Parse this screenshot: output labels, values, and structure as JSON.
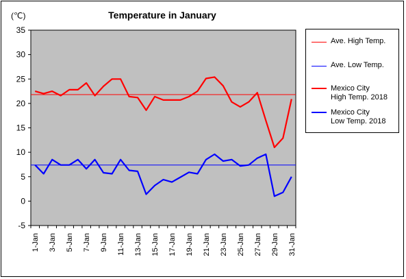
{
  "chart_data": {
    "type": "line",
    "title": "Temperature in January",
    "unit_label": "(℃)",
    "ylim": [
      -5,
      35
    ],
    "yticks": [
      -5,
      0,
      5,
      10,
      15,
      20,
      25,
      30,
      35
    ],
    "x": [
      "1-Jan",
      "2-Jan",
      "3-Jan",
      "4-Jan",
      "5-Jan",
      "6-Jan",
      "7-Jan",
      "8-Jan",
      "9-Jan",
      "10-Jan",
      "11-Jan",
      "12-Jan",
      "13-Jan",
      "14-Jan",
      "15-Jan",
      "16-Jan",
      "17-Jan",
      "18-Jan",
      "19-Jan",
      "20-Jan",
      "21-Jan",
      "22-Jan",
      "23-Jan",
      "24-Jan",
      "25-Jan",
      "26-Jan",
      "27-Jan",
      "28-Jan",
      "29-Jan",
      "30-Jan",
      "31-Jan"
    ],
    "xticklabels": [
      "1-Jan",
      "3-Jan",
      "5-Jan",
      "7-Jan",
      "9-Jan",
      "11-Jan",
      "13-Jan",
      "15-Jan",
      "17-Jan",
      "19-Jan",
      "21-Jan",
      "23-Jan",
      "25-Jan",
      "27-Jan",
      "29-Jan",
      "31-Jan"
    ],
    "grid": false,
    "legend_position": "right",
    "plot_background": "#c0c0c0",
    "series": [
      {
        "name": "Ave. High Temp.",
        "color": "#ff0000",
        "width": 1,
        "values": [
          21.8,
          21.8,
          21.8,
          21.8,
          21.8,
          21.8,
          21.8,
          21.8,
          21.8,
          21.8,
          21.8,
          21.8,
          21.8,
          21.8,
          21.8,
          21.8,
          21.8,
          21.8,
          21.8,
          21.8,
          21.8,
          21.8,
          21.8,
          21.8,
          21.8,
          21.8,
          21.8,
          21.8,
          21.8,
          21.8,
          21.8
        ]
      },
      {
        "name": "Ave. Low Temp.",
        "color": "#0000ff",
        "width": 1,
        "values": [
          7.4,
          7.4,
          7.4,
          7.4,
          7.4,
          7.4,
          7.4,
          7.4,
          7.4,
          7.4,
          7.4,
          7.4,
          7.4,
          7.4,
          7.4,
          7.4,
          7.4,
          7.4,
          7.4,
          7.4,
          7.4,
          7.4,
          7.4,
          7.4,
          7.4,
          7.4,
          7.4,
          7.4,
          7.4,
          7.4,
          7.4
        ]
      },
      {
        "name": "Mexico City\nHigh Temp. 2018",
        "color": "#ff0000",
        "width": 2.2,
        "values": [
          22.5,
          22.0,
          22.5,
          21.6,
          22.8,
          22.8,
          24.2,
          21.6,
          23.5,
          25.0,
          25.0,
          21.4,
          21.2,
          18.6,
          21.4,
          20.7,
          20.7,
          20.7,
          21.4,
          22.5,
          25.1,
          25.4,
          23.6,
          20.3,
          19.3,
          20.3,
          22.2,
          16.5,
          11.0,
          12.9,
          20.9
        ]
      },
      {
        "name": "Mexico City\nLow Temp. 2018",
        "color": "#0000ff",
        "width": 2.2,
        "values": [
          7.4,
          5.6,
          8.5,
          7.4,
          7.4,
          8.5,
          6.6,
          8.5,
          5.8,
          5.6,
          8.5,
          6.3,
          6.1,
          1.4,
          3.2,
          4.4,
          3.9,
          4.9,
          5.9,
          5.6,
          8.5,
          9.6,
          8.2,
          8.5,
          7.2,
          7.4,
          8.8,
          9.6,
          1.0,
          1.8,
          5.0
        ]
      }
    ]
  }
}
